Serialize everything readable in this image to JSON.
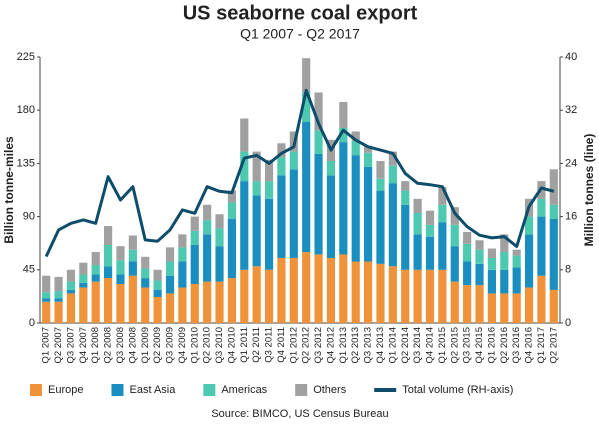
{
  "chart_data": {
    "type": "bar",
    "stacked": true,
    "title": "US seaborne coal export",
    "subtitle": "Q1 2007 - Q2 2017",
    "ylabel": "Billion tonne-miles",
    "y2label": "Million tonnes (line)",
    "source": "Source: BIMCO, US Census Bureau",
    "categories": [
      "Q1 2007",
      "Q2 2007",
      "Q3 2007",
      "Q4 2007",
      "Q1 2008",
      "Q2 2008",
      "Q3 2008",
      "Q4 2008",
      "Q1 2009",
      "Q2 2009",
      "Q3 2009",
      "Q4 2009",
      "Q1 2010",
      "Q2 2010",
      "Q3 2010",
      "Q4 2010",
      "Q1 2011",
      "Q2 2011",
      "Q3 2011",
      "Q4 2011",
      "Q1 2012",
      "Q2 2012",
      "Q3 2012",
      "Q4 2012",
      "Q1 2013",
      "Q2 2013",
      "Q3 2013",
      "Q4 2013",
      "Q1 2014",
      "Q2 2014",
      "Q3 2014",
      "Q4 2014",
      "Q1 2015",
      "Q2 2015",
      "Q3 2015",
      "Q4 2015",
      "Q1 2016",
      "Q2 2016",
      "Q3 2016",
      "Q4 2016",
      "Q1 2017",
      "Q2 2017"
    ],
    "ylim": [
      0,
      225
    ],
    "yticks": [
      0,
      45,
      90,
      135,
      180,
      225
    ],
    "y2lim": [
      0,
      40
    ],
    "y2ticks": [
      0,
      8,
      16,
      24,
      32,
      40
    ],
    "series": [
      {
        "name": "Europe",
        "color": "#f0923a",
        "values": [
          18,
          18,
          25,
          30,
          35,
          38,
          33,
          40,
          30,
          22,
          25,
          30,
          33,
          35,
          35,
          38,
          45,
          48,
          45,
          55,
          55,
          60,
          58,
          55,
          58,
          52,
          52,
          50,
          48,
          45,
          45,
          45,
          45,
          35,
          32,
          32,
          25,
          25,
          25,
          30,
          40,
          28
        ]
      },
      {
        "name": "East Asia",
        "color": "#1a8fbf",
        "values": [
          3,
          3,
          3,
          4,
          6,
          10,
          8,
          12,
          8,
          6,
          15,
          22,
          33,
          40,
          30,
          50,
          75,
          60,
          60,
          70,
          75,
          110,
          85,
          70,
          95,
          90,
          80,
          62,
          70,
          55,
          30,
          28,
          40,
          30,
          20,
          18,
          20,
          20,
          22,
          45,
          50,
          60
        ]
      },
      {
        "name": "Americas",
        "color": "#4cc9b0",
        "values": [
          5,
          6,
          7,
          7,
          8,
          18,
          12,
          10,
          8,
          8,
          12,
          12,
          12,
          12,
          15,
          14,
          25,
          12,
          15,
          15,
          15,
          25,
          20,
          12,
          12,
          12,
          12,
          10,
          15,
          12,
          18,
          10,
          15,
          18,
          15,
          12,
          10,
          15,
          10,
          15,
          15,
          12
        ]
      },
      {
        "name": "Others",
        "color": "#a0a0a0",
        "values": [
          14,
          12,
          10,
          10,
          11,
          16,
          12,
          12,
          10,
          9,
          12,
          11,
          12,
          13,
          12,
          10,
          28,
          25,
          18,
          12,
          17,
          29,
          32,
          18,
          22,
          8,
          6,
          15,
          12,
          8,
          12,
          12,
          15,
          15,
          10,
          8,
          8,
          15,
          5,
          15,
          15,
          30
        ]
      },
      {
        "name": "Total volume (RH-axis)",
        "color": "#0d4d6b",
        "type": "line",
        "axis": "y2",
        "values": [
          10,
          14,
          15,
          15.5,
          15,
          22,
          18.5,
          20.5,
          12.5,
          12.3,
          14,
          17,
          16.5,
          20.5,
          19.8,
          19.6,
          24.8,
          25.2,
          24,
          25.5,
          26.5,
          35,
          30,
          26,
          29,
          27.5,
          26.5,
          26,
          25.5,
          22.5,
          21,
          20.8,
          20.5,
          16.5,
          14.5,
          13.2,
          12.8,
          13,
          11.5,
          17.5,
          20.3,
          19.8
        ]
      }
    ]
  }
}
